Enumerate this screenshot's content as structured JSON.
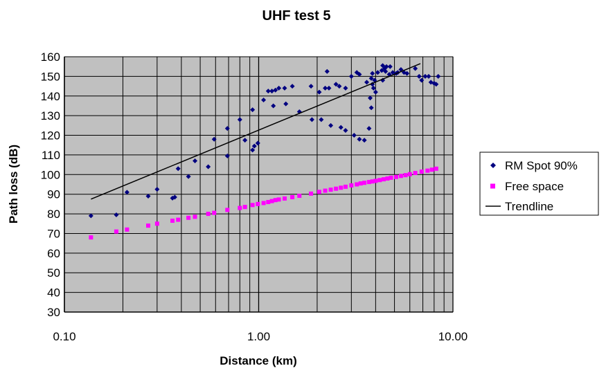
{
  "chart_data": {
    "type": "scatter",
    "title": "UHF test 5",
    "xlabel": "Distance (km)",
    "ylabel": "Path loss (dB)",
    "x_scale": "log",
    "xlim": [
      0.1,
      10
    ],
    "ylim": [
      30,
      160
    ],
    "x_ticks": [
      "0.10",
      "1.00",
      "10.00"
    ],
    "y_ticks": [
      "30",
      "40",
      "50",
      "60",
      "70",
      "80",
      "90",
      "100",
      "110",
      "120",
      "130",
      "140",
      "150",
      "160"
    ],
    "grid": true,
    "plot_background": "#c0c0c0",
    "legend_position": "right",
    "series": [
      {
        "name": "RM Spot 90%",
        "marker": "diamond",
        "color": "#000080",
        "points": [
          [
            0.137,
            79
          ],
          [
            0.185,
            79.5
          ],
          [
            0.21,
            91
          ],
          [
            0.27,
            89
          ],
          [
            0.3,
            92.5
          ],
          [
            0.36,
            88
          ],
          [
            0.37,
            88.5
          ],
          [
            0.385,
            103
          ],
          [
            0.435,
            99
          ],
          [
            0.47,
            107
          ],
          [
            0.55,
            104
          ],
          [
            0.59,
            118
          ],
          [
            0.69,
            109.5
          ],
          [
            0.69,
            123.5
          ],
          [
            0.8,
            128
          ],
          [
            0.85,
            117.5
          ],
          [
            0.93,
            112.5
          ],
          [
            0.95,
            114.5
          ],
          [
            0.93,
            133
          ],
          [
            0.99,
            116
          ],
          [
            1.06,
            138
          ],
          [
            1.12,
            142.5
          ],
          [
            1.17,
            142.5
          ],
          [
            1.19,
            135
          ],
          [
            1.22,
            143
          ],
          [
            1.27,
            144
          ],
          [
            1.38,
            136
          ],
          [
            1.36,
            144
          ],
          [
            1.49,
            145
          ],
          [
            1.62,
            132
          ],
          [
            1.86,
            145
          ],
          [
            1.88,
            128
          ],
          [
            2.05,
            142
          ],
          [
            2.1,
            128
          ],
          [
            2.2,
            144
          ],
          [
            2.25,
            152.5
          ],
          [
            2.3,
            144
          ],
          [
            2.35,
            125
          ],
          [
            2.5,
            146
          ],
          [
            2.6,
            145
          ],
          [
            2.65,
            124
          ],
          [
            2.8,
            122.5
          ],
          [
            2.8,
            144
          ],
          [
            3.0,
            150
          ],
          [
            3.1,
            120
          ],
          [
            3.2,
            152
          ],
          [
            3.3,
            151
          ],
          [
            3.3,
            118
          ],
          [
            3.5,
            117.5
          ],
          [
            3.6,
            147
          ],
          [
            3.7,
            123.5
          ],
          [
            3.75,
            139
          ],
          [
            3.8,
            134
          ],
          [
            3.8,
            149
          ],
          [
            3.85,
            146
          ],
          [
            3.85,
            151.5
          ],
          [
            3.9,
            144
          ],
          [
            3.95,
            148
          ],
          [
            4.0,
            142
          ],
          [
            4.1,
            152
          ],
          [
            4.3,
            153
          ],
          [
            4.35,
            148
          ],
          [
            4.35,
            155.5
          ],
          [
            4.45,
            154
          ],
          [
            4.5,
            152.5
          ],
          [
            4.55,
            155
          ],
          [
            4.7,
            151
          ],
          [
            4.75,
            155
          ],
          [
            4.9,
            152
          ],
          [
            5.1,
            151.5
          ],
          [
            5.2,
            152
          ],
          [
            5.4,
            153.5
          ],
          [
            5.6,
            152
          ],
          [
            5.8,
            151.5
          ],
          [
            6.4,
            154
          ],
          [
            6.7,
            150
          ],
          [
            6.9,
            148
          ],
          [
            7.2,
            150
          ],
          [
            7.5,
            150
          ],
          [
            7.7,
            147
          ],
          [
            8.0,
            146.5
          ],
          [
            8.2,
            146
          ],
          [
            8.4,
            150
          ]
        ]
      },
      {
        "name": "Free space",
        "marker": "square",
        "color": "#ff00ff",
        "points": [
          [
            0.137,
            68
          ],
          [
            0.185,
            71
          ],
          [
            0.21,
            72
          ],
          [
            0.27,
            74
          ],
          [
            0.3,
            75
          ],
          [
            0.36,
            76.5
          ],
          [
            0.385,
            77
          ],
          [
            0.435,
            78
          ],
          [
            0.47,
            78.5
          ],
          [
            0.55,
            80
          ],
          [
            0.59,
            80.5
          ],
          [
            0.69,
            82
          ],
          [
            0.8,
            83
          ],
          [
            0.85,
            83.5
          ],
          [
            0.93,
            84.5
          ],
          [
            0.99,
            85
          ],
          [
            1.06,
            85.5
          ],
          [
            1.12,
            86
          ],
          [
            1.17,
            86.5
          ],
          [
            1.22,
            87
          ],
          [
            1.27,
            87.3
          ],
          [
            1.36,
            87.8
          ],
          [
            1.49,
            88.5
          ],
          [
            1.62,
            89.2
          ],
          [
            1.86,
            90.3
          ],
          [
            2.05,
            91.2
          ],
          [
            2.2,
            91.8
          ],
          [
            2.35,
            92.3
          ],
          [
            2.5,
            92.8
          ],
          [
            2.65,
            93.3
          ],
          [
            2.8,
            93.8
          ],
          [
            3.0,
            94.5
          ],
          [
            3.2,
            95
          ],
          [
            3.35,
            95.5
          ],
          [
            3.5,
            95.8
          ],
          [
            3.7,
            96.2
          ],
          [
            3.85,
            96.5
          ],
          [
            4.0,
            96.8
          ],
          [
            4.2,
            97.2
          ],
          [
            4.4,
            97.6
          ],
          [
            4.6,
            98
          ],
          [
            4.8,
            98.4
          ],
          [
            5.1,
            98.8
          ],
          [
            5.4,
            99.3
          ],
          [
            5.7,
            99.7
          ],
          [
            6.0,
            100.2
          ],
          [
            6.4,
            100.8
          ],
          [
            6.9,
            101.5
          ],
          [
            7.4,
            102
          ],
          [
            7.8,
            102.5
          ],
          [
            8.2,
            103
          ]
        ]
      },
      {
        "name": "Trendline",
        "marker": "line",
        "color": "#000000",
        "points": [
          [
            0.137,
            87.5
          ],
          [
            6.8,
            156.5
          ]
        ]
      }
    ]
  }
}
